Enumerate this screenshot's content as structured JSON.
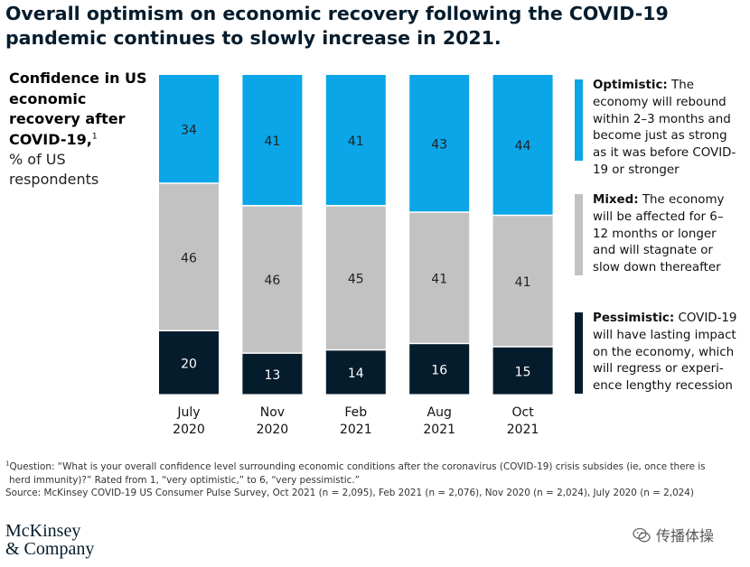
{
  "title": "Overall optimism on economic recovery following the COVID-19 pandemic continues to slowly increase in 2021.",
  "left_label": {
    "bold": "Confidence in US economic recovery after COVID-19,",
    "footnote_mark": "1",
    "sub": "% of US respondents"
  },
  "chart_data": {
    "type": "bar",
    "stacked": true,
    "categories": [
      [
        "July",
        "2020"
      ],
      [
        "Nov",
        "2020"
      ],
      [
        "Feb",
        "2021"
      ],
      [
        "Aug",
        "2021"
      ],
      [
        "Oct",
        "2021"
      ]
    ],
    "series": [
      {
        "name": "Pessimistic",
        "color": "#051c2c",
        "values": [
          20,
          13,
          14,
          16,
          15
        ]
      },
      {
        "name": "Mixed",
        "color": "#c2c2c2",
        "values": [
          46,
          46,
          45,
          41,
          41
        ]
      },
      {
        "name": "Optimistic",
        "color": "#0aa6e8",
        "values": [
          34,
          41,
          41,
          43,
          44
        ]
      }
    ],
    "ylim": [
      0,
      100
    ],
    "grid": false,
    "legend_placement": "right"
  },
  "legend": [
    {
      "label": "Optimistic:",
      "description": "The economy will rebound within 2–3 months and become just as strong as it was before COVID-19 or stronger",
      "color": "#0aa6e8"
    },
    {
      "label": "Mixed:",
      "description": "The economy will be affected for 6–12 months or longer and will stagnate or slow down thereafter",
      "color": "#c2c2c2"
    },
    {
      "label": "Pessimistic:",
      "description": "COVID-19 will have lasting impact on the economy, which will regress or experi-ence lengthy recession",
      "color": "#051c2c"
    }
  ],
  "footnotes": {
    "question_mark": "1",
    "question": "Question: “What is your overall confidence level surrounding economic conditions after the coronavirus (COVID-19) crisis subsides (ie, once there is herd immunity)?” Rated from 1, “very optimistic,” to 6, “very pessimistic.”",
    "source": "Source: McKinsey COVID-19 US Consumer Pulse Survey, Oct 2021 (n = 2,095), Feb 2021 (n = 2,076), Nov 2020 (n = 2,024), July 2020 (n = 2,024)"
  },
  "logo": {
    "line1": "McKinsey",
    "line2": "& Company"
  },
  "watermark": {
    "text": "传播体操",
    "icon": "wechat-icon"
  }
}
